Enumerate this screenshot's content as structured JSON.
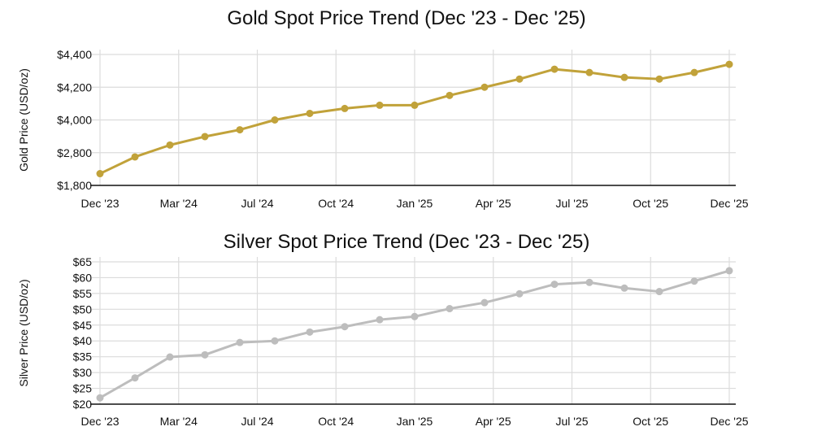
{
  "chart_data": [
    {
      "type": "line",
      "title": "Gold Spot Price Trend (Dec '23 - Dec '25)",
      "xlabel": "",
      "ylabel": "Gold Price (USD/oz)",
      "x_tick_labels": [
        "Dec '23",
        "Mar '24",
        "Jul '24",
        "Oct '24",
        "Jan '25",
        "Apr '25",
        "Jul '25",
        "Oct '25",
        "Dec '25"
      ],
      "y_ticks": [
        1800,
        2800,
        4000,
        4200,
        4400
      ],
      "y_tick_labels": [
        "$1,800",
        "$2,800",
        "$4,000",
        "$4,200",
        "$4,400"
      ],
      "y_axis_note": "ticks evenly spaced (non-linear scale)",
      "ylim": [
        1800,
        4400
      ],
      "grid": true,
      "color": "#C1A23A",
      "series": [
        {
          "name": "Gold",
          "values": [
            2160,
            2670,
            3080,
            3390,
            3640,
            4000,
            4040,
            4070,
            4090,
            4090,
            4150,
            4200,
            4250,
            4310,
            4290,
            4260,
            4250,
            4290,
            4340
          ]
        }
      ]
    },
    {
      "type": "line",
      "title": "Silver Spot Price Trend (Dec '23 - Dec '25)",
      "xlabel": "",
      "ylabel": "Silver Price (USD/oz)",
      "x_tick_labels": [
        "Dec '23",
        "Mar '24",
        "Jul '24",
        "Oct '24",
        "Jan '25",
        "Apr '25",
        "Jul '25",
        "Oct '25",
        "Dec '25"
      ],
      "y_ticks": [
        20,
        25,
        30,
        35,
        40,
        45,
        50,
        55,
        60,
        65
      ],
      "y_tick_labels": [
        "$20",
        "$25",
        "$30",
        "$35",
        "$40",
        "$45",
        "$50",
        "$55",
        "$60",
        "$65"
      ],
      "ylim": [
        20,
        65
      ],
      "grid": true,
      "color": "#BDBDBD",
      "series": [
        {
          "name": "Silver",
          "values": [
            22.0,
            28.3,
            34.9,
            35.6,
            39.5,
            40.0,
            42.8,
            44.5,
            46.7,
            47.7,
            50.2,
            52.1,
            54.9,
            57.9,
            58.5,
            56.7,
            55.6,
            58.9,
            62.2
          ]
        }
      ]
    }
  ]
}
